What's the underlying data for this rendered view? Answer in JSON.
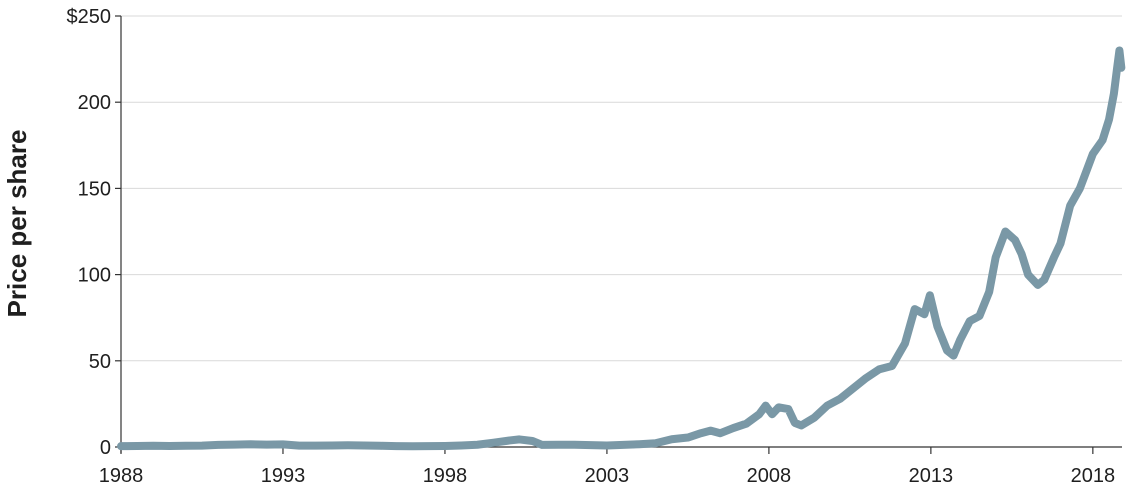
{
  "chart_data": {
    "type": "line",
    "title": "",
    "xlabel": "",
    "ylabel": "Price per share",
    "xlim": [
      1988,
      2018.9
    ],
    "ylim": [
      0,
      250
    ],
    "grid": true,
    "x_ticks": [
      1988,
      1993,
      1998,
      2003,
      2008,
      2013,
      2018
    ],
    "y_ticks": [
      0,
      50,
      100,
      150,
      200,
      250
    ],
    "y_tick_labels": [
      "0",
      "50",
      "100",
      "150",
      "200",
      "$250"
    ],
    "series": [
      {
        "color": "#7A98A6",
        "points": [
          [
            1988.0,
            0.5
          ],
          [
            1988.5,
            0.6
          ],
          [
            1989.0,
            0.7
          ],
          [
            1989.5,
            0.6
          ],
          [
            1990.0,
            0.7
          ],
          [
            1990.5,
            0.8
          ],
          [
            1991.0,
            1.2
          ],
          [
            1991.5,
            1.4
          ],
          [
            1992.0,
            1.6
          ],
          [
            1992.5,
            1.4
          ],
          [
            1993.0,
            1.5
          ],
          [
            1993.5,
            0.8
          ],
          [
            1994.0,
            0.8
          ],
          [
            1994.5,
            0.9
          ],
          [
            1995.0,
            1.0
          ],
          [
            1995.5,
            0.9
          ],
          [
            1996.0,
            0.7
          ],
          [
            1996.5,
            0.5
          ],
          [
            1997.0,
            0.4
          ],
          [
            1997.5,
            0.5
          ],
          [
            1998.0,
            0.6
          ],
          [
            1998.5,
            0.9
          ],
          [
            1999.0,
            1.3
          ],
          [
            1999.5,
            2.5
          ],
          [
            2000.0,
            3.8
          ],
          [
            2000.3,
            4.4
          ],
          [
            2000.7,
            3.5
          ],
          [
            2001.0,
            1.2
          ],
          [
            2001.5,
            1.3
          ],
          [
            2002.0,
            1.3
          ],
          [
            2002.5,
            1.1
          ],
          [
            2003.0,
            0.9
          ],
          [
            2003.5,
            1.2
          ],
          [
            2004.0,
            1.6
          ],
          [
            2004.5,
            2.2
          ],
          [
            2005.0,
            4.5
          ],
          [
            2005.5,
            5.5
          ],
          [
            2005.9,
            8.0
          ],
          [
            2006.2,
            9.5
          ],
          [
            2006.5,
            8.0
          ],
          [
            2006.9,
            11.0
          ],
          [
            2007.3,
            13.5
          ],
          [
            2007.7,
            19.0
          ],
          [
            2007.9,
            24.0
          ],
          [
            2008.1,
            19.0
          ],
          [
            2008.3,
            23.0
          ],
          [
            2008.6,
            22.0
          ],
          [
            2008.8,
            14.0
          ],
          [
            2009.0,
            12.5
          ],
          [
            2009.4,
            17.0
          ],
          [
            2009.8,
            24.0
          ],
          [
            2010.2,
            28.0
          ],
          [
            2010.6,
            34.0
          ],
          [
            2011.0,
            40.0
          ],
          [
            2011.4,
            45.0
          ],
          [
            2011.8,
            47.0
          ],
          [
            2012.2,
            60.0
          ],
          [
            2012.5,
            80.0
          ],
          [
            2012.8,
            77.0
          ],
          [
            2012.97,
            88.0
          ],
          [
            2013.2,
            70.0
          ],
          [
            2013.5,
            56.0
          ],
          [
            2013.7,
            53.0
          ],
          [
            2013.9,
            62.0
          ],
          [
            2014.2,
            73.0
          ],
          [
            2014.5,
            76.0
          ],
          [
            2014.8,
            90.0
          ],
          [
            2015.0,
            110.0
          ],
          [
            2015.3,
            125.0
          ],
          [
            2015.6,
            120.0
          ],
          [
            2015.8,
            112.0
          ],
          [
            2016.0,
            100.0
          ],
          [
            2016.3,
            94.0
          ],
          [
            2016.5,
            97.0
          ],
          [
            2016.8,
            110.0
          ],
          [
            2017.0,
            118.0
          ],
          [
            2017.3,
            140.0
          ],
          [
            2017.6,
            150.0
          ],
          [
            2017.8,
            160.0
          ],
          [
            2018.0,
            170.0
          ],
          [
            2018.3,
            178.0
          ],
          [
            2018.5,
            190.0
          ],
          [
            2018.65,
            205.0
          ],
          [
            2018.75,
            220.0
          ],
          [
            2018.82,
            230.0
          ],
          [
            2018.88,
            220.0
          ]
        ]
      }
    ]
  }
}
